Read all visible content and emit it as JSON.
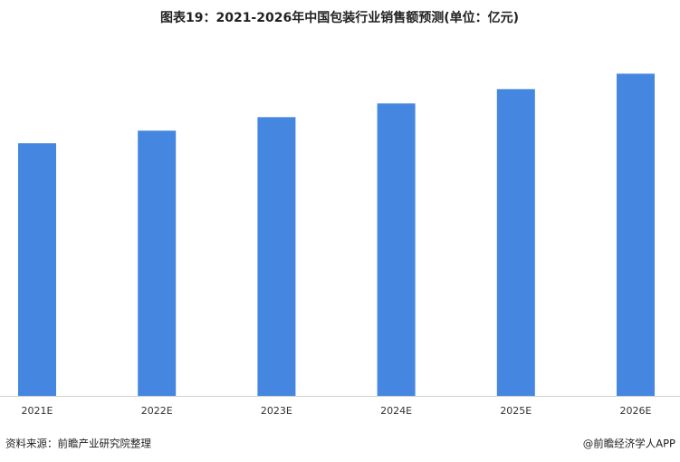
{
  "chart_data": {
    "type": "bar",
    "title": "图表19：2021-2026年中国包装行业销售额预测(单位：亿元)",
    "categories": [
      "2021E",
      "2022E",
      "2023E",
      "2024E",
      "2025E",
      "2026E"
    ],
    "values": [
      11800,
      12390,
      13020,
      13660,
      14330,
      15050
    ],
    "color": "#4486e0",
    "ylim": [
      0,
      16800
    ],
    "source": "资料来源：前瞻产业研究院整理",
    "credit": "@前瞻经济学人APP"
  }
}
